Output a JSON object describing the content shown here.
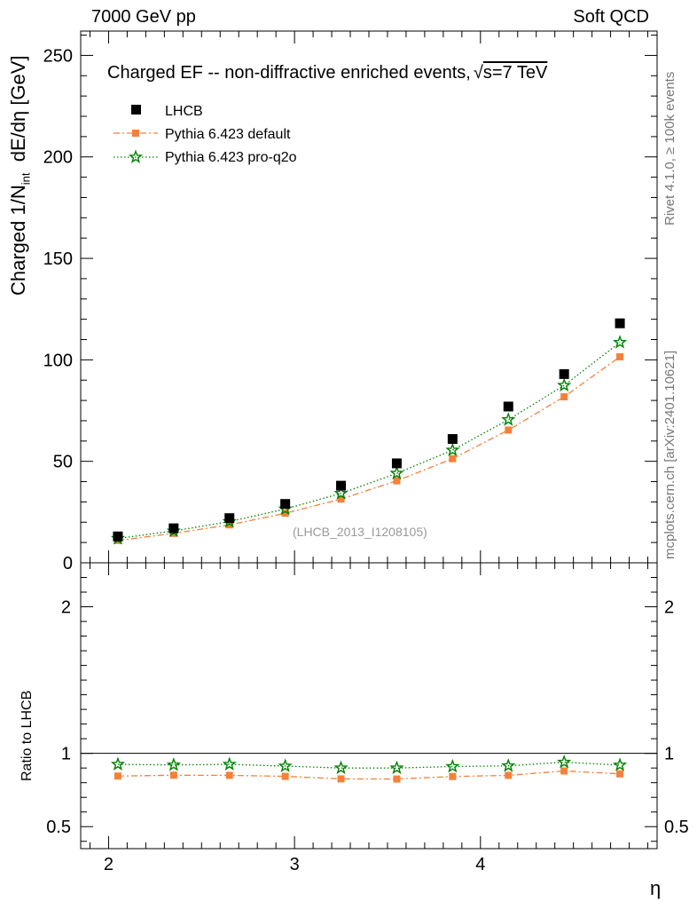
{
  "header": {
    "left": "7000 GeV pp",
    "right": "Soft QCD"
  },
  "side_labels": {
    "rivet": "Rivet 4.1.0, ≥ 100k events",
    "mcplots": "mcplots.cern.ch [arXiv:2401.10621]"
  },
  "colors": {
    "data": "#000000",
    "pythia_default": "#f4813a",
    "pythia_proq2o": "#008000"
  },
  "chart_data": [
    {
      "type": "scatter",
      "panel": "main",
      "title": "Charged EF -- non-diffractive enriched events, √s=7 TeV",
      "title_parts": {
        "main": "Charged EF -- non-diffractive enriched events,",
        "sqrt": "√",
        "s_part": "s=7 TeV"
      },
      "ylabel": "Charged 1/N_int  dE/dη [GeV]",
      "ylabel_parts": {
        "a": "Charged 1/N",
        "sub": "int",
        "b": "dE/dη [GeV]"
      },
      "xlabel": "η",
      "xlim": [
        1.85,
        4.95
      ],
      "ylim": [
        0,
        262
      ],
      "yticks": [
        0,
        50,
        100,
        150,
        200,
        250
      ],
      "watermark": "(LHCB_2013_I1208105)",
      "legend_position": "top-left",
      "x": [
        2.05,
        2.35,
        2.65,
        2.95,
        3.25,
        3.55,
        3.85,
        4.15,
        4.45,
        4.75
      ],
      "series": [
        {
          "name": "LHCB",
          "style": "marker",
          "values": [
            13,
            17,
            22,
            29,
            38,
            49,
            61,
            77,
            93,
            118
          ]
        },
        {
          "name": "Pythia 6.423 default",
          "style": "dashdot",
          "values": [
            11,
            14.5,
            18.7,
            24.4,
            31.4,
            40.4,
            51.3,
            65.4,
            81.8,
            101.5
          ]
        },
        {
          "name": "Pythia 6.423 pro-q2o",
          "style": "dotted",
          "values": [
            12,
            15.7,
            20.3,
            26.5,
            34.2,
            44.1,
            55.5,
            70.5,
            87.4,
            108.6
          ]
        }
      ]
    },
    {
      "type": "line",
      "panel": "ratio",
      "ylabel": "Ratio to LHCB",
      "xlabel": "η",
      "xlim": [
        1.85,
        4.95
      ],
      "ylim": [
        0.35,
        2.3
      ],
      "yticks": [
        0.5,
        1,
        2
      ],
      "ytick_labels": [
        "0.5",
        "1",
        "2"
      ],
      "xticks": [
        2,
        3,
        4
      ],
      "x": [
        2.05,
        2.35,
        2.65,
        2.95,
        3.25,
        3.55,
        3.85,
        4.15,
        4.45,
        4.75
      ],
      "reference": 1,
      "series": [
        {
          "name": "Pythia 6.423 default",
          "values": [
            0.845,
            0.851,
            0.85,
            0.843,
            0.826,
            0.825,
            0.842,
            0.85,
            0.88,
            0.86
          ]
        },
        {
          "name": "Pythia 6.423 pro-q2o",
          "values": [
            0.925,
            0.921,
            0.925,
            0.913,
            0.9,
            0.9,
            0.91,
            0.915,
            0.94,
            0.92
          ]
        }
      ]
    }
  ]
}
